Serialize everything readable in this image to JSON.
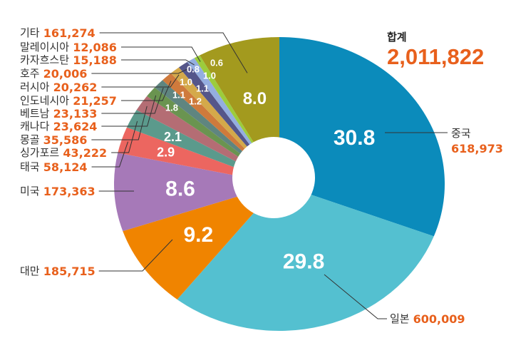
{
  "chart_data": {
    "type": "pie",
    "donut": true,
    "total_label": "합계",
    "total_value": "2,011,822",
    "slices": [
      {
        "name": "중국",
        "value": "618,973",
        "percent": 30.8,
        "color": "#0b8bbb"
      },
      {
        "name": "일본",
        "value": "600,009",
        "percent": 29.8,
        "color": "#54c0d0"
      },
      {
        "name": "대만",
        "value": "185,715",
        "percent": 9.2,
        "color": "#f08400"
      },
      {
        "name": "미국",
        "value": "173,363",
        "percent": 8.6,
        "color": "#a679b8"
      },
      {
        "name": "태국",
        "value": "58,124",
        "percent": 2.9,
        "color": "#ec6660"
      },
      {
        "name": "싱가포르",
        "value": "43,222",
        "percent": 2.1,
        "color": "#5b9a8c"
      },
      {
        "name": "몽골",
        "value": "35,586",
        "percent": 1.8,
        "color": "#b46d74"
      },
      {
        "name": "캐나다",
        "value": "23,624",
        "percent": 1.2,
        "color": "#6a9450"
      },
      {
        "name": "베트남",
        "value": "23,133",
        "percent": 1.1,
        "color": "#5f8580"
      },
      {
        "name": "인도네시아",
        "value": "21,257",
        "percent": 1.1,
        "color": "#cf7a3c"
      },
      {
        "name": "러시아",
        "value": "20,262",
        "percent": 1.0,
        "color": "#d4a94a"
      },
      {
        "name": "호주",
        "value": "20,006",
        "percent": 1.0,
        "color": "#55568a"
      },
      {
        "name": "카자흐스탄",
        "value": "15,188",
        "percent": 0.8,
        "color": "#94aee0"
      },
      {
        "name": "말레이시아",
        "value": "12,086",
        "percent": 0.6,
        "color": "#9ccc3c"
      },
      {
        "name": "기타",
        "value": "161,274",
        "percent": 8.0,
        "color": "#a39a1e"
      }
    ]
  }
}
